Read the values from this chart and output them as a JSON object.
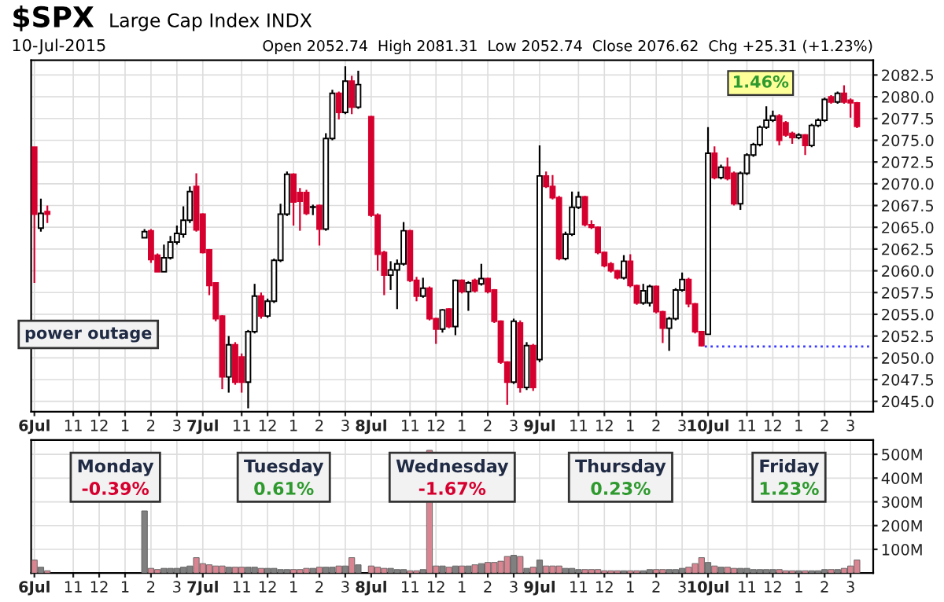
{
  "chart_data": [
    {
      "type": "candlestick",
      "title": "$SPX",
      "subtitle": "Large Cap Index INDX",
      "annotations": [
        "10-Jul-2015",
        "Open 2052.74  High 2081.31  Low 2052.74  Close 2076.62  Chg +25.31 (+1.23%)",
        "power outage",
        "1.46%"
      ],
      "categories": [
        "6Jul",
        null,
        null,
        null,
        null,
        null,
        "11",
        null,
        null,
        null,
        "12",
        null,
        null,
        null,
        "1",
        null,
        null,
        null,
        "2",
        null,
        null,
        null,
        "3",
        null,
        null,
        null,
        "7Jul",
        null,
        null,
        null,
        null,
        null,
        "11",
        null,
        null,
        null,
        "12",
        null,
        null,
        null,
        "1",
        null,
        null,
        null,
        "2",
        null,
        null,
        null,
        "3",
        null,
        null,
        null,
        "8Jul",
        null,
        null,
        null,
        null,
        null,
        "11",
        null,
        null,
        null,
        "12",
        null,
        null,
        null,
        "1",
        null,
        null,
        null,
        "2",
        null,
        null,
        null,
        "3",
        null,
        null,
        null,
        "9Jul",
        null,
        null,
        null,
        null,
        null,
        "11",
        null,
        null,
        null,
        "12",
        null,
        null,
        null,
        "1",
        null,
        null,
        null,
        "2",
        null,
        null,
        null,
        "3",
        null,
        null,
        null,
        "10Jul",
        null,
        null,
        null,
        null,
        null,
        "11",
        null,
        null,
        null,
        "12",
        null,
        null,
        null,
        "1",
        null,
        null,
        null,
        "2",
        null,
        null,
        null,
        "3",
        null,
        null,
        null
      ],
      "ohlc": [
        [
          2074.2,
          2074.2,
          2058.6,
          2066.5
        ],
        [
          2064.9,
          2068.3,
          2064.5,
          2066.6
        ],
        [
          2066.8,
          2067.5,
          2065.5,
          2066.5
        ],
        null,
        null,
        null,
        null,
        null,
        null,
        null,
        null,
        null,
        null,
        null,
        null,
        null,
        null,
        [
          2063.8,
          2064.8,
          2063.8,
          2064.5
        ],
        [
          2064.6,
          2064.8,
          2060.9,
          2061.3
        ],
        [
          2061.8,
          2062.0,
          2059.9,
          2059.9
        ],
        [
          2059.9,
          2063.0,
          2059.9,
          2061.5
        ],
        [
          2061.5,
          2064.0,
          2061.3,
          2063.3
        ],
        [
          2063.3,
          2065.2,
          2063.0,
          2064.3
        ],
        [
          2064.2,
          2067.4,
          2063.8,
          2065.8
        ],
        [
          2065.8,
          2069.7,
          2065.5,
          2069.1
        ],
        [
          2069.7,
          2071.2,
          2064.5,
          2064.7
        ],
        [
          2066.5,
          2066.6,
          2062.0,
          2062.1
        ],
        [
          2062.4,
          2062.5,
          2057.2,
          2058.3
        ],
        [
          2058.6,
          2058.7,
          2054.2,
          2054.5
        ],
        [
          2054.8,
          2054.9,
          2046.4,
          2047.8
        ],
        [
          2047.8,
          2052.5,
          2046.0,
          2051.5
        ],
        [
          2051.5,
          2051.8,
          2046.9,
          2047.2
        ],
        [
          2050.1,
          2050.5,
          2046.0,
          2047.2
        ],
        [
          2047.2,
          2053.2,
          2044.2,
          2053.0
        ],
        [
          2053.0,
          2058.5,
          2052.8,
          2057.1
        ],
        [
          2057.1,
          2057.5,
          2054.5,
          2054.8
        ],
        [
          2054.8,
          2056.8,
          2054.6,
          2056.5
        ],
        [
          2056.5,
          2061.4,
          2056.3,
          2061.2
        ],
        [
          2061.2,
          2067.7,
          2061.0,
          2066.5
        ],
        [
          2066.5,
          2071.4,
          2066.3,
          2071.1
        ],
        [
          2071.1,
          2071.2,
          2065.2,
          2067.9
        ],
        [
          2069.0,
          2069.5,
          2064.6,
          2068.0
        ],
        [
          2069.0,
          2069.3,
          2066.4,
          2066.6
        ],
        [
          2067.3,
          2067.6,
          2066.4,
          2067.3
        ],
        [
          2067.5,
          2067.6,
          2062.9,
          2064.8
        ],
        [
          2064.8,
          2075.8,
          2064.6,
          2075.2
        ],
        [
          2075.2,
          2080.8,
          2075.0,
          2080.4
        ],
        [
          2080.4,
          2080.6,
          2077.4,
          2078.2
        ],
        [
          2078.2,
          2083.5,
          2078.0,
          2081.8
        ],
        [
          2081.8,
          2082.4,
          2078.0,
          2078.8
        ],
        [
          2078.8,
          2083.0,
          2078.6,
          2081.4
        ],
        null,
        [
          2077.7,
          2077.8,
          2066.2,
          2066.4
        ],
        [
          2066.4,
          2066.6,
          2060.0,
          2061.9
        ],
        [
          2062.1,
          2062.3,
          2057.2,
          2059.5
        ],
        [
          2059.5,
          2061.1,
          2057.8,
          2060.1
        ],
        [
          2060.1,
          2061.3,
          2055.6,
          2060.8
        ],
        [
          2060.8,
          2065.6,
          2060.6,
          2064.6
        ],
        [
          2064.6,
          2064.7,
          2058.7,
          2058.9
        ],
        [
          2058.9,
          2059.3,
          2056.5,
          2057.1
        ],
        [
          2057.1,
          2059.2,
          2056.9,
          2058.0
        ],
        [
          2058.0,
          2058.2,
          2054.3,
          2054.5
        ],
        [
          2054.5,
          2054.6,
          2051.6,
          2053.3
        ],
        [
          2053.3,
          2055.6,
          2052.9,
          2055.5
        ],
        [
          2055.6,
          2055.7,
          2053.4,
          2053.6
        ],
        [
          2053.6,
          2059.0,
          2052.6,
          2058.9
        ],
        [
          2058.9,
          2059.0,
          2057.4,
          2057.6
        ],
        [
          2057.6,
          2058.8,
          2055.4,
          2058.6
        ],
        [
          2058.9,
          2059.1,
          2057.5,
          2057.7
        ],
        [
          2058.5,
          2060.8,
          2058.3,
          2059.1
        ],
        [
          2059.1,
          2059.2,
          2057.4,
          2057.6
        ],
        [
          2057.8,
          2057.9,
          2054.0,
          2054.2
        ],
        [
          2054.2,
          2054.3,
          2049.3,
          2049.5
        ],
        [
          2049.5,
          2049.6,
          2044.6,
          2047.2
        ],
        [
          2047.2,
          2054.5,
          2047.0,
          2054.2
        ],
        [
          2054.0,
          2054.3,
          2046.0,
          2046.6
        ],
        [
          2046.6,
          2051.8,
          2046.3,
          2051.4
        ],
        [
          2051.4,
          2051.6,
          2046.2,
          2046.6
        ],
        [
          2049.8,
          2074.4,
          2049.5,
          2070.9
        ],
        [
          2070.9,
          2071.4,
          2069.5,
          2069.7
        ],
        [
          2069.7,
          2071.0,
          2068.2,
          2068.4
        ],
        [
          2068.4,
          2068.6,
          2061.2,
          2061.4
        ],
        [
          2061.4,
          2064.5,
          2061.2,
          2064.2
        ],
        [
          2064.2,
          2069.1,
          2064.0,
          2067.3
        ],
        [
          2067.3,
          2069.1,
          2067.1,
          2068.5
        ],
        [
          2068.5,
          2068.6,
          2065.1,
          2065.3
        ],
        [
          2065.3,
          2065.8,
          2064.8,
          2065.0
        ],
        [
          2065.0,
          2065.1,
          2061.9,
          2062.1
        ],
        [
          2062.1,
          2062.2,
          2060.4,
          2060.6
        ],
        [
          2060.8,
          2061.0,
          2059.8,
          2060.0
        ],
        [
          2060.0,
          2060.1,
          2059.0,
          2059.2
        ],
        [
          2059.2,
          2061.8,
          2059.0,
          2061.1
        ],
        [
          2061.1,
          2061.9,
          2058.1,
          2058.3
        ],
        [
          2058.3,
          2058.4,
          2056.1,
          2056.3
        ],
        [
          2056.3,
          2058.5,
          2056.1,
          2057.7
        ],
        [
          2056.3,
          2058.4,
          2055.9,
          2058.2
        ],
        [
          2058.2,
          2058.3,
          2055.1,
          2055.3
        ],
        [
          2055.3,
          2055.4,
          2051.7,
          2053.4
        ],
        [
          2053.4,
          2054.7,
          2050.8,
          2054.5
        ],
        [
          2054.5,
          2058.0,
          2054.3,
          2057.8
        ],
        [
          2057.8,
          2059.8,
          2057.6,
          2059.0
        ],
        [
          2059.0,
          2059.2,
          2055.8,
          2056.2
        ],
        [
          2056.2,
          2056.3,
          2052.8,
          2053.0
        ],
        [
          2053.0,
          2053.1,
          2051.3,
          2051.4
        ],
        [
          2052.7,
          2076.5,
          2052.7,
          2073.5
        ],
        [
          2073.5,
          2074.3,
          2070.5,
          2070.7
        ],
        [
          2070.7,
          2072.2,
          2070.5,
          2071.9
        ],
        [
          2071.9,
          2073.0,
          2070.4,
          2070.6
        ],
        [
          2071.2,
          2071.4,
          2067.5,
          2067.7
        ],
        [
          2067.7,
          2071.4,
          2067.0,
          2071.2
        ],
        [
          2071.2,
          2073.5,
          2071.0,
          2073.3
        ],
        [
          2073.3,
          2074.7,
          2073.1,
          2074.5
        ],
        [
          2074.5,
          2076.7,
          2074.3,
          2076.5
        ],
        [
          2076.5,
          2078.9,
          2076.3,
          2077.3
        ],
        [
          2077.3,
          2078.4,
          2077.1,
          2077.8
        ],
        [
          2077.8,
          2078.0,
          2074.4,
          2075.0
        ],
        [
          2077.0,
          2077.2,
          2075.4,
          2075.6
        ],
        [
          2075.8,
          2076.0,
          2074.6,
          2075.3
        ],
        [
          2075.3,
          2075.8,
          2075.1,
          2075.6
        ],
        [
          2075.6,
          2075.7,
          2073.3,
          2074.4
        ],
        [
          2074.4,
          2076.9,
          2074.2,
          2076.7
        ],
        [
          2076.7,
          2077.5,
          2076.5,
          2077.3
        ],
        [
          2077.3,
          2079.9,
          2077.1,
          2079.7
        ],
        [
          2080.0,
          2080.2,
          2079.2,
          2079.4
        ],
        [
          2079.4,
          2080.6,
          2079.2,
          2080.4
        ],
        [
          2080.4,
          2081.31,
          2079.2,
          2079.4
        ],
        [
          2079.6,
          2079.8,
          2077.6,
          2079.3
        ],
        [
          2079.3,
          2079.4,
          2076.4,
          2076.6
        ],
        null,
        null
      ],
      "colors": [
        "#d6002f",
        "#ffffff",
        "#d6002f",
        null,
        null,
        null,
        null,
        null,
        null,
        null,
        null,
        null,
        null,
        null,
        null,
        null,
        null,
        "#ffffff",
        "#d6002f",
        "#d6002f",
        "#ffffff",
        "#ffffff",
        "#ffffff",
        "#ffffff",
        "#ffffff",
        "#d6002f",
        "#d6002f",
        "#d6002f",
        "#d6002f",
        "#d6002f",
        "#ffffff",
        "#d6002f",
        "#d6002f",
        "#ffffff",
        "#ffffff",
        "#d6002f",
        "#ffffff",
        "#ffffff",
        "#ffffff",
        "#ffffff",
        "#d6002f",
        "#d6002f",
        "#d6002f",
        "#ffffff",
        "#d6002f",
        "#ffffff",
        "#ffffff",
        "#d6002f",
        "#ffffff",
        "#d6002f",
        "#ffffff",
        null,
        "#d6002f",
        "#d6002f",
        "#d6002f",
        "#ffffff",
        "#ffffff",
        "#ffffff",
        "#d6002f",
        "#d6002f",
        "#ffffff",
        "#d6002f",
        "#d6002f",
        "#ffffff",
        "#d6002f",
        "#ffffff",
        "#d6002f",
        "#ffffff",
        "#d6002f",
        "#ffffff",
        "#d6002f",
        "#d6002f",
        "#d6002f",
        "#d6002f",
        "#ffffff",
        "#d6002f",
        "#ffffff",
        "#d6002f",
        "#ffffff",
        "#d6002f",
        "#d6002f",
        "#d6002f",
        "#ffffff",
        "#ffffff",
        "#ffffff",
        "#d6002f",
        "#d6002f",
        "#d6002f",
        "#d6002f",
        "#d6002f",
        "#d6002f",
        "#ffffff",
        "#d6002f",
        "#d6002f",
        "#ffffff",
        "#ffffff",
        "#d6002f",
        "#d6002f",
        "#ffffff",
        "#ffffff",
        "#ffffff",
        "#d6002f",
        "#d6002f",
        "#d6002f",
        "#ffffff",
        "#d6002f",
        "#ffffff",
        "#d6002f",
        "#d6002f",
        "#ffffff",
        "#ffffff",
        "#ffffff",
        "#ffffff",
        "#ffffff",
        "#ffffff",
        "#d6002f",
        "#d6002f",
        "#d6002f",
        "#ffffff",
        "#d6002f",
        "#ffffff",
        "#ffffff",
        "#ffffff",
        "#d6002f",
        "#ffffff",
        "#d6002f",
        "#d6002f",
        "#d6002f",
        null,
        null
      ],
      "ylim": [
        2043.8,
        2084.2
      ],
      "yticks": [
        {
          "value": 2045,
          "label": "2045.0"
        },
        {
          "value": 2047.5,
          "label": "2047.5"
        },
        {
          "value": 2050,
          "label": "2050.0"
        },
        {
          "value": 2052.5,
          "label": "2052.5"
        },
        {
          "value": 2055,
          "label": "2055.0"
        },
        {
          "value": 2057.5,
          "label": "2057.5"
        },
        {
          "value": 2060,
          "label": "2060.0"
        },
        {
          "value": 2062.5,
          "label": "2062.5"
        },
        {
          "value": 2065,
          "label": "2065.0"
        },
        {
          "value": 2067.5,
          "label": "2067.5"
        },
        {
          "value": 2070,
          "label": "2070.0"
        },
        {
          "value": 2072.5,
          "label": "2072.5"
        },
        {
          "value": 2075,
          "label": "2075.0"
        },
        {
          "value": 2077.5,
          "label": "2077.5"
        },
        {
          "value": 2080,
          "label": "2080.0"
        },
        {
          "value": 2082.5,
          "label": "2082.5"
        }
      ],
      "ref_lines": [
        {
          "axis": "y",
          "value": 2051.31,
          "color": "#3a3aff",
          "line_style": "dotted"
        }
      ],
      "grid": true
    },
    {
      "type": "bar",
      "annotations": [
        "Monday\n-0.39%",
        "Tuesday\n0.61%",
        "Wednesday\n-1.67%",
        "Thursday\n0.23%",
        "Friday\n1.23%"
      ],
      "categories": [
        "6Jul",
        null,
        null,
        null,
        null,
        null,
        "11",
        null,
        null,
        null,
        "12",
        null,
        null,
        null,
        "1",
        null,
        null,
        null,
        "2",
        null,
        null,
        null,
        "3",
        null,
        null,
        null,
        "7Jul",
        null,
        null,
        null,
        null,
        null,
        "11",
        null,
        null,
        null,
        "12",
        null,
        null,
        null,
        "1",
        null,
        null,
        null,
        "2",
        null,
        null,
        null,
        "3",
        null,
        null,
        null,
        "8Jul",
        null,
        null,
        null,
        null,
        null,
        "11",
        null,
        null,
        null,
        "12",
        null,
        null,
        null,
        "1",
        null,
        null,
        null,
        "2",
        null,
        null,
        null,
        "3",
        null,
        null,
        null,
        "9Jul",
        null,
        null,
        null,
        null,
        null,
        "11",
        null,
        null,
        null,
        "12",
        null,
        null,
        null,
        "1",
        null,
        null,
        null,
        "2",
        null,
        null,
        null,
        "3",
        null,
        null,
        null,
        "10Jul",
        null,
        null,
        null,
        null,
        null,
        "11",
        null,
        null,
        null,
        "12",
        null,
        null,
        null,
        "1",
        null,
        null,
        null,
        "2",
        null,
        null,
        null,
        "3",
        null,
        null,
        null
      ],
      "values": [
        55,
        25,
        10,
        null,
        null,
        null,
        null,
        null,
        null,
        null,
        null,
        null,
        null,
        null,
        null,
        null,
        null,
        262,
        20,
        15,
        20,
        20,
        20,
        25,
        30,
        65,
        40,
        35,
        30,
        30,
        25,
        25,
        25,
        25,
        25,
        20,
        20,
        20,
        15,
        15,
        15,
        15,
        20,
        20,
        25,
        25,
        25,
        30,
        30,
        65,
        35,
        null,
        30,
        25,
        20,
        20,
        15,
        15,
        10,
        10,
        15,
        517,
        30,
        30,
        25,
        30,
        30,
        30,
        35,
        40,
        45,
        45,
        50,
        70,
        75,
        70,
        20,
        25,
        55,
        30,
        30,
        30,
        20,
        20,
        15,
        15,
        15,
        15,
        10,
        10,
        10,
        10,
        10,
        10,
        10,
        15,
        15,
        15,
        15,
        15,
        20,
        25,
        40,
        65,
        45,
        30,
        25,
        25,
        20,
        20,
        20,
        15,
        15,
        15,
        15,
        15,
        10,
        10,
        10,
        10,
        10,
        10,
        15,
        15,
        15,
        20,
        30,
        55,
        null,
        null
      ],
      "colors": [
        "#d98591",
        "#808080",
        "#d98591",
        null,
        null,
        null,
        null,
        null,
        null,
        null,
        null,
        null,
        null,
        null,
        null,
        null,
        null,
        "#808080",
        "#d98591",
        "#d98591",
        "#808080",
        "#808080",
        "#808080",
        "#808080",
        "#808080",
        "#d98591",
        "#d98591",
        "#d98591",
        "#d98591",
        "#d98591",
        "#808080",
        "#d98591",
        "#d98591",
        "#808080",
        "#808080",
        "#d98591",
        "#808080",
        "#808080",
        "#808080",
        "#808080",
        "#d98591",
        "#d98591",
        "#d98591",
        "#808080",
        "#d98591",
        "#808080",
        "#808080",
        "#d98591",
        "#808080",
        "#d98591",
        "#808080",
        null,
        "#d98591",
        "#d98591",
        "#d98591",
        "#808080",
        "#808080",
        "#808080",
        "#d98591",
        "#d98591",
        "#808080",
        "#d98591",
        "#d98591",
        "#808080",
        "#d98591",
        "#808080",
        "#d98591",
        "#808080",
        "#d98591",
        "#808080",
        "#d98591",
        "#d98591",
        "#d98591",
        "#d98591",
        "#808080",
        "#d98591",
        "#808080",
        "#d98591",
        "#808080",
        "#d98591",
        "#d98591",
        "#d98591",
        "#808080",
        "#808080",
        "#808080",
        "#d98591",
        "#d98591",
        "#d98591",
        "#d98591",
        "#d98591",
        "#d98591",
        "#808080",
        "#d98591",
        "#d98591",
        "#808080",
        "#808080",
        "#d98591",
        "#d98591",
        "#808080",
        "#808080",
        "#808080",
        "#d98591",
        "#d98591",
        "#d98591",
        "#808080",
        "#d98591",
        "#808080",
        "#d98591",
        "#d98591",
        "#808080",
        "#808080",
        "#808080",
        "#808080",
        "#808080",
        "#808080",
        "#d98591",
        "#d98591",
        "#d98591",
        "#808080",
        "#d98591",
        "#808080",
        "#808080",
        "#808080",
        "#d98591",
        "#808080",
        "#d98591",
        "#d98591",
        "#d98591",
        null,
        null
      ],
      "ylim": [
        0,
        560
      ],
      "yticks": [
        {
          "value": 100,
          "label": "100M"
        },
        {
          "value": 200,
          "label": "200M"
        },
        {
          "value": 300,
          "label": "300M"
        },
        {
          "value": 400,
          "label": "400M"
        },
        {
          "value": 500,
          "label": "500M"
        }
      ],
      "grid": true
    }
  ]
}
